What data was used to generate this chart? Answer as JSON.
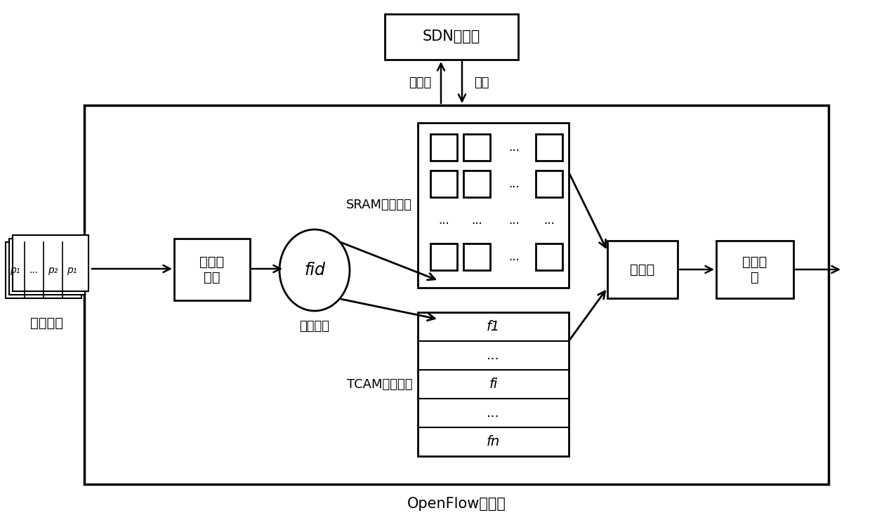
{
  "bg_color": "#ffffff",
  "line_color": "#000000",
  "title": "OpenFlow交换机",
  "sdn_label": "SDN控制器",
  "packet_label": "数据分组",
  "header_label": "头部域\n解析",
  "fid_label": "fid",
  "flow_id_label": "流标识符",
  "sram_label": "SRAM精确流表",
  "tcam_label": "TCAM通配流表",
  "arbiter_label": "仲裁器",
  "action_label": "执行动\n作",
  "miss_label": "包失配",
  "update_label": "更新",
  "p_labels": [
    "p₁",
    "...",
    "p₂",
    "p₁"
  ],
  "tcam_rows": [
    "f1",
    "...",
    "fi",
    "...",
    "fn"
  ]
}
